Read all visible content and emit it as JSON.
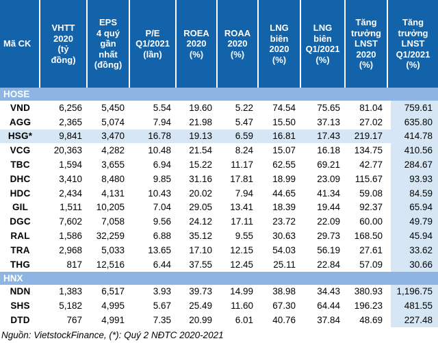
{
  "chart_data": {
    "type": "table",
    "columns": [
      "Mã CK",
      "VHTT\n2020\n(tỷ\nđồng)",
      "EPS\n4 quý\ngần\nnhất\n(đồng)",
      "P/E\nQ1/2021\n(lần)",
      "ROEA\n2020\n(%)",
      "ROAA\n2020\n(%)",
      "LNG\nbiên\n2020\n(%)",
      "LNG\nbiên\nQ1/2021\n(%)",
      "Tăng\ntrưởng\nLNST\n2020\n(%)",
      "Tăng\ntrưởng\nLNST\nQ1/2021\n(%)"
    ],
    "sections": [
      {
        "name": "HOSE",
        "rows": [
          [
            "VND",
            "6,256",
            "5,450",
            "5.54",
            "19.60",
            "5.22",
            "74.54",
            "75.65",
            "81.04",
            "759.61"
          ],
          [
            "AGG",
            "2,365",
            "5,074",
            "7.94",
            "21.98",
            "5.47",
            "15.50",
            "37.13",
            "27.02",
            "635.80"
          ],
          [
            "HSG*",
            "9,841",
            "3,470",
            "16.78",
            "19.13",
            "6.59",
            "16.81",
            "17.43",
            "219.17",
            "414.78"
          ],
          [
            "VCG",
            "20,363",
            "4,282",
            "10.48",
            "21.54",
            "8.24",
            "15.07",
            "16.18",
            "134.75",
            "410.56"
          ],
          [
            "TBC",
            "1,594",
            "3,655",
            "6.94",
            "15.22",
            "11.17",
            "62.55",
            "69.21",
            "42.77",
            "284.67"
          ],
          [
            "DHC",
            "3,410",
            "8,480",
            "9.85",
            "31.16",
            "17.81",
            "18.99",
            "23.09",
            "115.67",
            "93.93"
          ],
          [
            "HDC",
            "2,434",
            "4,131",
            "10.43",
            "20.02",
            "7.94",
            "44.65",
            "41.34",
            "59.08",
            "84.59"
          ],
          [
            "GIL",
            "1,511",
            "10,205",
            "7.04",
            "29.05",
            "13.41",
            "18.39",
            "19.44",
            "92.37",
            "65.94"
          ],
          [
            "DGC",
            "7,602",
            "7,058",
            "9.56",
            "24.12",
            "17.11",
            "23.72",
            "22.09",
            "60.00",
            "49.79"
          ],
          [
            "RAL",
            "1,586",
            "32,259",
            "6.88",
            "35.12",
            "9.55",
            "30.63",
            "29.73",
            "168.50",
            "45.94"
          ],
          [
            "TRA",
            "2,968",
            "5,033",
            "13.65",
            "17.10",
            "12.15",
            "54.03",
            "56.19",
            "27.61",
            "33.62"
          ],
          [
            "THG",
            "817",
            "12,516",
            "6.44",
            "37.55",
            "12.45",
            "25.11",
            "22.84",
            "57.09",
            "30.66"
          ]
        ]
      },
      {
        "name": "HNX",
        "rows": [
          [
            "NDN",
            "1,383",
            "6,517",
            "3.93",
            "39.73",
            "14.99",
            "38.98",
            "34.43",
            "380.93",
            "1,196.75"
          ],
          [
            "SHS",
            "5,182",
            "4,995",
            "5.67",
            "25.49",
            "11.60",
            "67.30",
            "64.44",
            "196.23",
            "481.55"
          ],
          [
            "DTD",
            "767",
            "4,991",
            "7.35",
            "20.99",
            "6.01",
            "40.76",
            "37.84",
            "48.69",
            "227.48"
          ]
        ]
      }
    ],
    "highlighted_rows": [
      "HSG*"
    ],
    "source_note": "Nguồn: VietstockFinance, (*): Quý 2 NĐTC 2020-2021"
  },
  "colors": {
    "header_bg": "#1263A9",
    "section_band_bg": "#8DB4E2",
    "highlight_bg": "#D6E6F4",
    "header_text": "#FFFFFF",
    "body_text": "#000000"
  }
}
